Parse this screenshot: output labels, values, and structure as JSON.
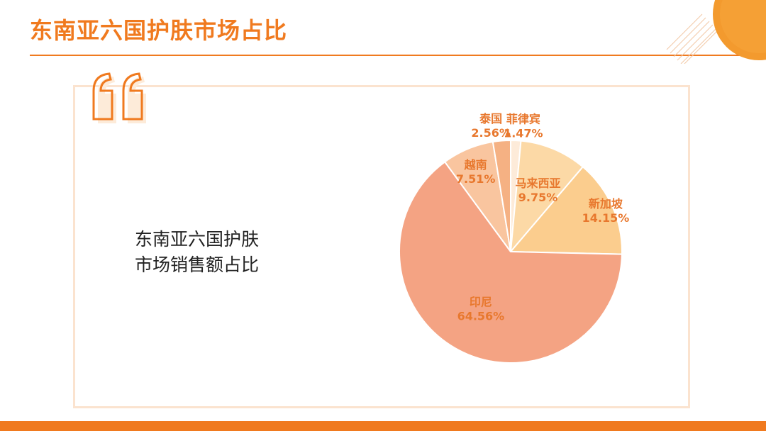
{
  "header": {
    "title": "东南亚六国护肤市场占比"
  },
  "caption": {
    "line1": "东南亚六国护肤",
    "line2": "市场销售额占比"
  },
  "colors": {
    "accent": "#f07a1f",
    "frame": "#fbe3cf",
    "label": "#e8782e"
  },
  "icons": {
    "quote": "double-quote-icon"
  },
  "chart_data": {
    "type": "pie",
    "categories": [
      "菲律宾",
      "马来西亚",
      "新加坡",
      "印尼",
      "越南",
      "泰国"
    ],
    "values": [
      1.47,
      9.75,
      14.15,
      64.56,
      7.51,
      2.56
    ],
    "labels": [
      "1.47%",
      "9.75%",
      "14.15%",
      "64.56%",
      "7.51%",
      "2.56%"
    ],
    "colors": [
      "#fdebd9",
      "#fcd9a6",
      "#fbcd8e",
      "#f4a383",
      "#f9c59f",
      "#f5b183"
    ]
  }
}
